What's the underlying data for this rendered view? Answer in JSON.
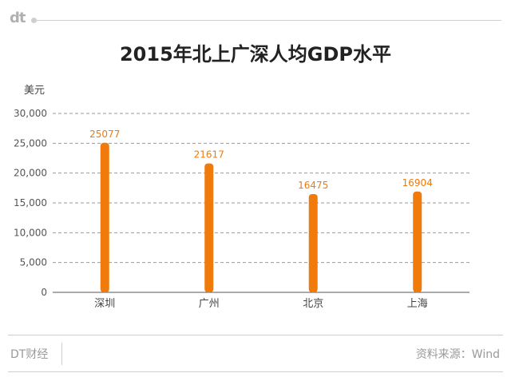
{
  "header": {
    "brand": "dt",
    "title": "2015年北上广深人均GDP水平",
    "unit": "美元"
  },
  "footer": {
    "left": "DT财经",
    "right": "资料来源：Wind"
  },
  "colors": {
    "bar": "#f07a0a",
    "label": "#f07a0a",
    "grid": "#9a9a9a",
    "axis": "#555555"
  },
  "chart_data": {
    "type": "bar",
    "title": "2015年北上广深人均GDP水平",
    "ylabel": "美元",
    "xlabel": "",
    "categories": [
      "深圳",
      "广州",
      "北京",
      "上海"
    ],
    "values": [
      25077,
      21617,
      16475,
      16904
    ],
    "ylim": [
      0,
      30000
    ],
    "yticks": [
      0,
      5000,
      10000,
      15000,
      20000,
      25000,
      30000
    ],
    "ytick_labels": [
      "0",
      "5,000",
      "10,000",
      "15,000",
      "20,000",
      "25,000",
      "30,000"
    ],
    "data_labels": [
      "25077",
      "21617",
      "16475",
      "16904"
    ],
    "grid": true,
    "grid_style": "dashed"
  }
}
